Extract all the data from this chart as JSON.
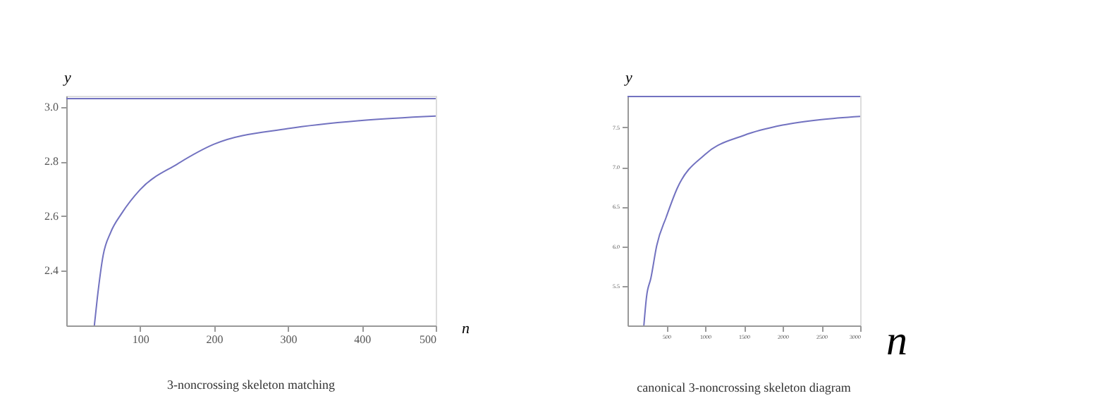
{
  "chart_data": [
    {
      "type": "line",
      "title": "3-noncrossing skeleton matching",
      "xlabel": "n",
      "ylabel": "y",
      "xlim": [
        0,
        500
      ],
      "ylim": [
        2.2,
        3.04
      ],
      "xticks": [
        100,
        200,
        300,
        400,
        500
      ],
      "yticks": [
        2.4,
        2.6,
        2.8,
        {
          "value": 3,
          "label": "3.0"
        }
      ],
      "series": [
        {
          "color": "#7272c0",
          "x": [
            38,
            42,
            50,
            60,
            75,
            100,
            150,
            200,
            300,
            400,
            500
          ],
          "values": [
            2.2,
            2.3,
            2.458,
            2.54,
            2.61,
            2.697,
            2.79,
            2.863,
            2.92,
            2.95,
            2.966
          ]
        }
      ],
      "ref_lines": [
        {
          "axis": "y",
          "value": 3.03,
          "color": "#7272c0"
        }
      ],
      "grid": false,
      "marker": "none",
      "line_style": "solid"
    },
    {
      "type": "line",
      "title": "canonical 3-noncrossing skeleton diagram",
      "xlabel": "n",
      "ylabel": "y",
      "xlim": [
        0,
        3000
      ],
      "ylim": [
        5.0,
        7.9
      ],
      "xticks": [
        500,
        1000,
        1500,
        2000,
        2500,
        3000
      ],
      "yticks": [
        5.5,
        {
          "value": 6,
          "label": "6.0"
        },
        6.5,
        {
          "value": 7,
          "label": "7.0"
        },
        7.5
      ],
      "series": [
        {
          "color": "#7272c0",
          "x": [
            211,
            245,
            302,
            377,
            500,
            640,
            1000,
            1500,
            2000,
            2500,
            3000
          ],
          "values": [
            5.0,
            5.36,
            5.6,
            6.01,
            6.37,
            6.73,
            7.16,
            7.4,
            7.53,
            7.6,
            7.64
          ]
        }
      ],
      "ref_lines": [
        {
          "axis": "y",
          "value": 7.89,
          "color": "#7272c0"
        }
      ],
      "grid": false,
      "marker": "none",
      "line_style": "solid"
    }
  ]
}
